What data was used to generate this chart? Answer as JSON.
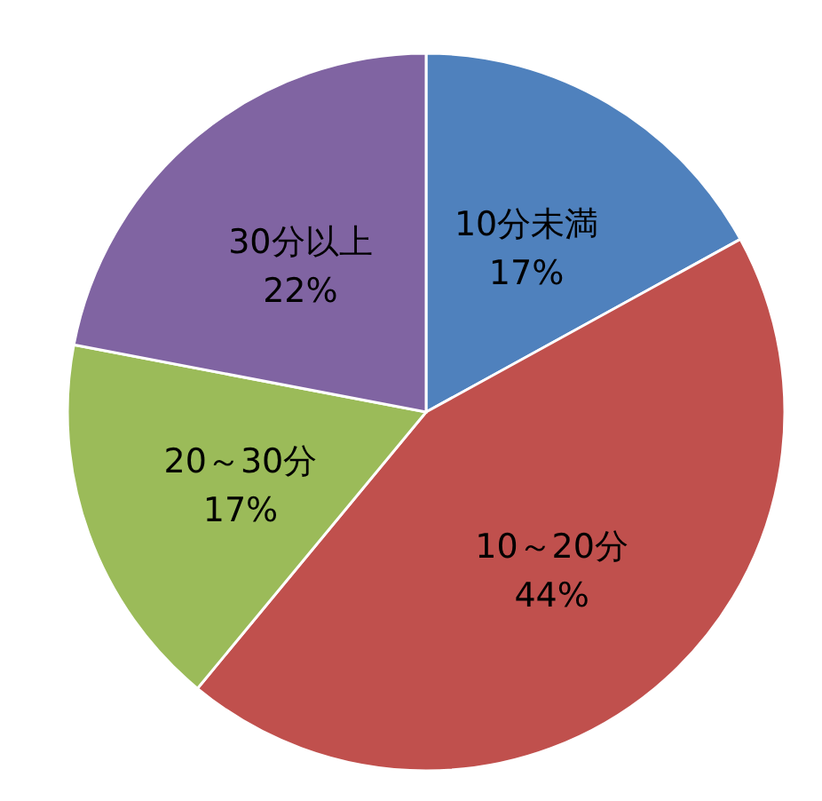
{
  "chart_data": {
    "type": "pie",
    "categories": [
      "10分未満",
      "10～20分",
      "20～30分",
      "30分以上"
    ],
    "values": [
      17,
      44,
      17,
      22
    ],
    "value_labels": [
      "17%",
      "44%",
      "17%",
      "22%"
    ],
    "colors": [
      "#4f81bd",
      "#c0504d",
      "#9bbb59",
      "#8064a2"
    ]
  }
}
